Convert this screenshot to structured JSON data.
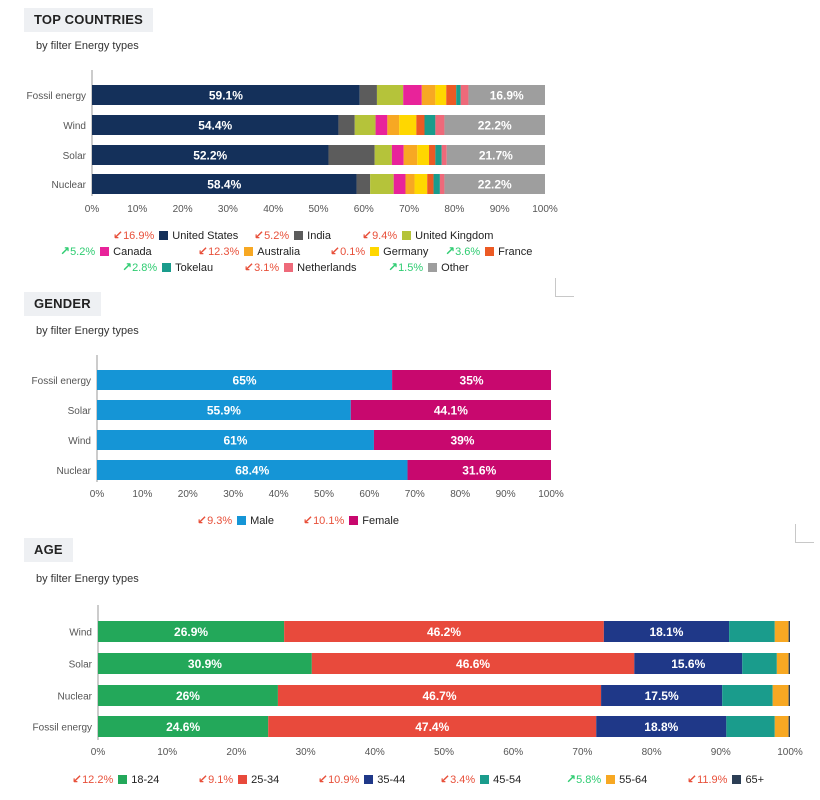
{
  "sections": [
    {
      "key": "countries",
      "title": "TOP COUNTRIES",
      "subtitle": "by filter Energy types",
      "legend": [
        {
          "change": "16.9%",
          "dir": "down",
          "label": "United States",
          "color": "#14305a"
        },
        {
          "change": "5.2%",
          "dir": "down",
          "label": "India",
          "color": "#5c5c5c"
        },
        {
          "change": "9.4%",
          "dir": "down",
          "label": "United Kingdom",
          "color": "#b5c33a"
        },
        {
          "change": "5.2%",
          "dir": "up",
          "label": "Canada",
          "color": "#e8239a"
        },
        {
          "change": "12.3%",
          "dir": "down",
          "label": "Australia",
          "color": "#f7a823"
        },
        {
          "change": "0.1%",
          "dir": "down",
          "label": "Germany",
          "color": "#ffd700"
        },
        {
          "change": "3.6%",
          "dir": "up",
          "label": "France",
          "color": "#ec5a24"
        },
        {
          "change": "2.8%",
          "dir": "up",
          "label": "Tokelau",
          "color": "#1a9c8c"
        },
        {
          "change": "3.1%",
          "dir": "down",
          "label": "Netherlands",
          "color": "#ee6a7a"
        },
        {
          "change": "1.5%",
          "dir": "up",
          "label": "Other",
          "color": "#9e9e9e"
        }
      ]
    },
    {
      "key": "gender",
      "title": "GENDER",
      "subtitle": "by filter Energy types",
      "legend": [
        {
          "change": "9.3%",
          "dir": "down",
          "label": "Male",
          "color": "#1595d6"
        },
        {
          "change": "10.1%",
          "dir": "down",
          "label": "Female",
          "color": "#c8086e"
        }
      ]
    },
    {
      "key": "age",
      "title": "AGE",
      "subtitle": "by filter Energy types",
      "legend": [
        {
          "change": "12.2%",
          "dir": "down",
          "label": "18-24",
          "color": "#23a85a"
        },
        {
          "change": "9.1%",
          "dir": "down",
          "label": "25-34",
          "color": "#e84a3c"
        },
        {
          "change": "10.9%",
          "dir": "down",
          "label": "35-44",
          "color": "#1f3888"
        },
        {
          "change": "3.4%",
          "dir": "down",
          "label": "45-54",
          "color": "#1a9c8c"
        },
        {
          "change": "5.8%",
          "dir": "up",
          "label": "55-64",
          "color": "#f7a823"
        },
        {
          "change": "11.9%",
          "dir": "down",
          "label": "65+",
          "color": "#2c3e55"
        }
      ]
    }
  ],
  "chart_data": [
    {
      "type": "bar",
      "stacked": true,
      "orientation": "horizontal",
      "title": "TOP COUNTRIES",
      "categories": [
        "Fossil energy",
        "Wind",
        "Solar",
        "Nuclear"
      ],
      "xlim": [
        0,
        100
      ],
      "xticks": [
        "0%",
        "10%",
        "20%",
        "30%",
        "40%",
        "50%",
        "60%",
        "70%",
        "80%",
        "90%",
        "100%"
      ],
      "series": [
        {
          "name": "United States",
          "color": "#14305a",
          "values": [
            59.1,
            54.4,
            52.2,
            58.4
          ],
          "labels": [
            "59.1%",
            "54.4%",
            "52.2%",
            "58.4%"
          ]
        },
        {
          "name": "India",
          "color": "#5c5c5c",
          "values": [
            3.8,
            3.6,
            10.2,
            3.0
          ]
        },
        {
          "name": "United Kingdom",
          "color": "#b5c33a",
          "values": [
            5.8,
            4.6,
            3.8,
            5.2
          ]
        },
        {
          "name": "Canada",
          "color": "#e8239a",
          "values": [
            4.1,
            2.6,
            2.6,
            2.6
          ]
        },
        {
          "name": "Australia",
          "color": "#f7a823",
          "values": [
            3.0,
            2.6,
            3.0,
            2.0
          ]
        },
        {
          "name": "Germany",
          "color": "#ffd700",
          "values": [
            2.4,
            3.8,
            2.6,
            2.8
          ]
        },
        {
          "name": "France",
          "color": "#ec5a24",
          "values": [
            2.2,
            1.8,
            1.4,
            1.4
          ]
        },
        {
          "name": "Tokelau",
          "color": "#1a9c8c",
          "values": [
            1.0,
            2.4,
            1.4,
            1.4
          ]
        },
        {
          "name": "Netherlands",
          "color": "#ee6a7a",
          "values": [
            1.7,
            2.0,
            1.1,
            1.0
          ]
        },
        {
          "name": "Other",
          "color": "#9e9e9e",
          "values": [
            16.9,
            22.2,
            21.7,
            22.2
          ],
          "labels": [
            "16.9%",
            "22.2%",
            "21.7%",
            "22.2%"
          ]
        }
      ]
    },
    {
      "type": "bar",
      "stacked": true,
      "orientation": "horizontal",
      "title": "GENDER",
      "categories": [
        "Fossil energy",
        "Solar",
        "Wind",
        "Nuclear"
      ],
      "xlim": [
        0,
        100
      ],
      "xticks": [
        "0%",
        "10%",
        "20%",
        "30%",
        "40%",
        "50%",
        "60%",
        "70%",
        "80%",
        "90%",
        "100%"
      ],
      "series": [
        {
          "name": "Male",
          "color": "#1595d6",
          "values": [
            65,
            55.9,
            61,
            68.4
          ],
          "labels": [
            "65%",
            "55.9%",
            "61%",
            "68.4%"
          ]
        },
        {
          "name": "Female",
          "color": "#c8086e",
          "values": [
            35,
            44.1,
            39,
            31.6
          ],
          "labels": [
            "35%",
            "44.1%",
            "39%",
            "31.6%"
          ]
        }
      ]
    },
    {
      "type": "bar",
      "stacked": true,
      "orientation": "horizontal",
      "title": "AGE",
      "categories": [
        "Wind",
        "Solar",
        "Nuclear",
        "Fossil energy"
      ],
      "xlim": [
        0,
        100
      ],
      "xticks": [
        "0%",
        "10%",
        "20%",
        "30%",
        "40%",
        "50%",
        "60%",
        "70%",
        "80%",
        "90%",
        "100%"
      ],
      "series": [
        {
          "name": "18-24",
          "color": "#23a85a",
          "values": [
            26.9,
            30.9,
            26,
            24.6
          ],
          "labels": [
            "26.9%",
            "30.9%",
            "26%",
            "24.6%"
          ]
        },
        {
          "name": "25-34",
          "color": "#e84a3c",
          "values": [
            46.2,
            46.6,
            46.7,
            47.4
          ],
          "labels": [
            "46.2%",
            "46.6%",
            "46.7%",
            "47.4%"
          ]
        },
        {
          "name": "35-44",
          "color": "#1f3888",
          "values": [
            18.1,
            15.6,
            17.5,
            18.8
          ],
          "labels": [
            "18.1%",
            "15.6%",
            "17.5%",
            "18.8%"
          ]
        },
        {
          "name": "45-54",
          "color": "#1a9c8c",
          "values": [
            6.6,
            5.0,
            7.3,
            7.0
          ]
        },
        {
          "name": "55-64",
          "color": "#f7a823",
          "values": [
            2.0,
            1.7,
            2.3,
            2.0
          ]
        },
        {
          "name": "65+",
          "color": "#2c3e55",
          "values": [
            0.2,
            0.2,
            0.2,
            0.2
          ]
        }
      ]
    }
  ]
}
